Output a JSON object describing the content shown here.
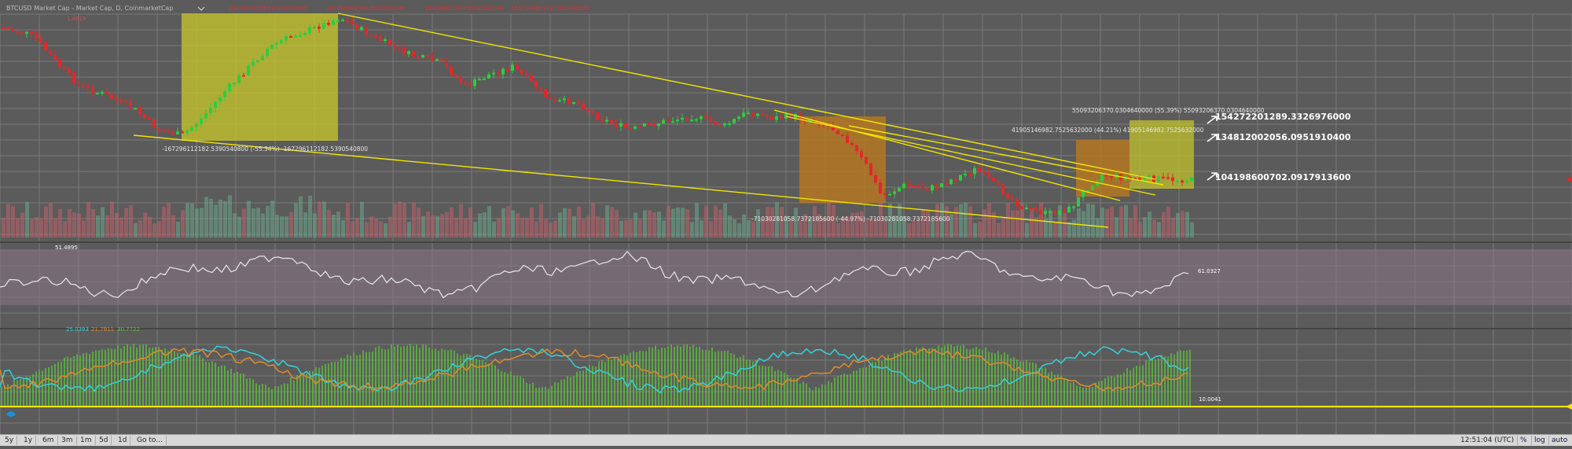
{
  "header": {
    "symbol_title": "BTCUSD Market Cap - Market Cap, D, CoinmarketCap",
    "price_value": "1.4919",
    "ohlc": [
      "104190082318.0000000000",
      "104258891906.0000000000",
      "104108851870.0000000000",
      "104190082318.0000000000"
    ],
    "menu_icon": "chevron-down-icon"
  },
  "annotations": {
    "range1": "-167296112182.5390540800 (-55.34%) -167296112182.5390540800",
    "range2": "-71030281058.7372185600 (-44.97%) -71030281058.7372185600",
    "range3": "41905146982.7525632000 (44.21%) 41905146982.7525632000",
    "range4": "55093206370.0304640000 (55.39%) 55093206370.0304640000"
  },
  "price_labels": {
    "label1": "154272201289.3326976000",
    "label2": "134812002056.0951910400",
    "label3": "104198600702.0917913600"
  },
  "indicators": {
    "rsi_left": "51.4895",
    "rsi_right": "61.0327",
    "dmi_values": [
      "25.0393",
      "21.7911",
      "30.7722"
    ],
    "dmi_level": "10.0041"
  },
  "colors": {
    "background": "#5b5b5b",
    "grid": "#7a7a7a",
    "up": "#2ecc40",
    "down": "#e0282a",
    "trendline": "#f2e600",
    "zone_yellow": "#c8c82a",
    "zone_orange": "#c07a1a",
    "rsi_band": "#8a7688",
    "rsi_line": "#e8e8e8",
    "dmi_plus": "#35d2d8",
    "dmi_minus": "#e08a2a",
    "adx_hist": "#5ec83a"
  },
  "bottom_toolbar": {
    "buttons": [
      "5y",
      "1y",
      "6m",
      "3m",
      "1m",
      "5d",
      "1d",
      "Go to..."
    ],
    "clock": "12:51:04 (UTC)",
    "right_buttons": [
      "%",
      "log",
      "auto"
    ]
  }
}
